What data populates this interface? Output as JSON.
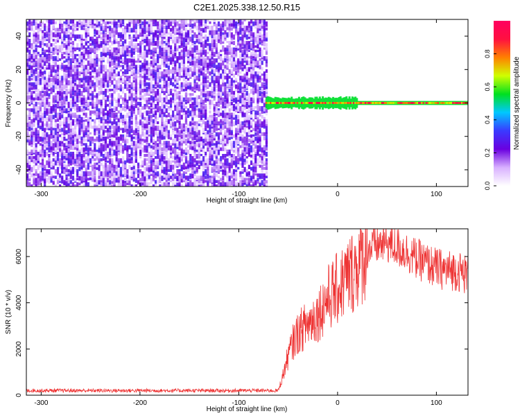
{
  "chart_data": [
    {
      "type": "heatmap",
      "title": "C2E1.2025.338.12.50.R15",
      "xlabel": "Height of straight line (km)",
      "ylabel": "Frequency (Hz)",
      "xlim": [
        -315,
        132
      ],
      "ylim": [
        -50,
        50
      ],
      "xticks": [
        -300,
        -200,
        -100,
        0,
        100
      ],
      "yticks": [
        -40,
        -20,
        0,
        20,
        40
      ],
      "colorbar": {
        "label": "Normalized spectral amplitude",
        "range": [
          0,
          1
        ],
        "ticks": [
          0.0,
          0.2,
          0.4,
          0.6,
          0.8
        ],
        "colors": [
          "#ffffff",
          "#d8b0ff",
          "#6a00e0",
          "#3a3aff",
          "#00c8ff",
          "#00e020",
          "#d0ff00",
          "#ff8000",
          "#ff1040",
          "#ff0060"
        ]
      },
      "regions": [
        {
          "x": [
            -315,
            -73
          ],
          "y": [
            -50,
            50
          ],
          "description": "broadband noise",
          "amplitude": [
            0.05,
            0.3
          ]
        },
        {
          "x": [
            -73,
            132
          ],
          "y": [
            -1.5,
            1.5
          ],
          "description": "narrow tone near 0 Hz",
          "amplitude": [
            0.6,
            1.0
          ]
        }
      ]
    },
    {
      "type": "line",
      "xlabel": "Height of straight line (km)",
      "ylabel": "SNR (10 * v/v)",
      "xlim": [
        -315,
        132
      ],
      "ylim": [
        0,
        7200
      ],
      "xticks": [
        -300,
        -200,
        -100,
        0,
        100
      ],
      "yticks": [
        0,
        2000,
        4000,
        6000
      ],
      "color": "#ee3333",
      "series": [
        {
          "x": [
            -315,
            -250,
            -200,
            -150,
            -100,
            -60,
            -55,
            -50,
            -45,
            -40,
            -30,
            -20,
            -10,
            0,
            10,
            20,
            30,
            40,
            50,
            60,
            70,
            80,
            90,
            100,
            110,
            120,
            132
          ],
          "values": [
            200,
            200,
            200,
            200,
            200,
            200,
            900,
            1700,
            2300,
            2700,
            3100,
            3500,
            4200,
            4600,
            5100,
            5600,
            6300,
            6500,
            6600,
            6400,
            6200,
            5900,
            5700,
            5500,
            5400,
            5400,
            5200
          ]
        }
      ]
    }
  ]
}
